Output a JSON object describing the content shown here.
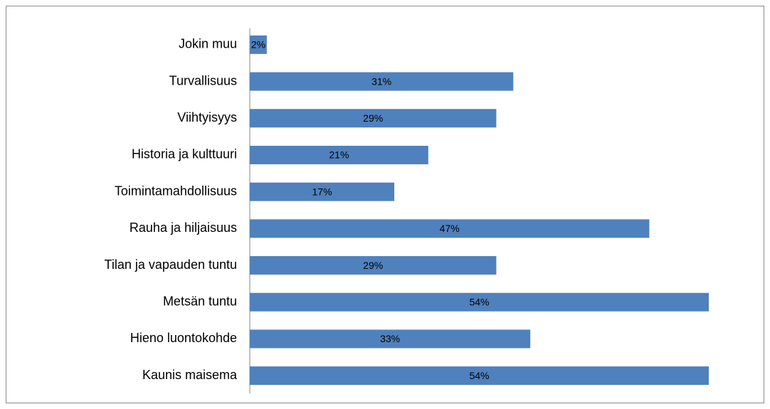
{
  "chart_data": {
    "type": "bar",
    "orientation": "horizontal",
    "categories": [
      "Jokin muu",
      "Turvallisuus",
      "Viihtyisyys",
      "Historia ja kulttuuri",
      "Toimintamahdollisuus",
      "Rauha ja hiljaisuus",
      "Tilan ja vapauden tuntu",
      "Metsän tuntu",
      "Hieno luontokohde",
      "Kaunis maisema"
    ],
    "values": [
      2,
      31,
      29,
      21,
      17,
      47,
      29,
      54,
      33,
      54
    ],
    "value_labels": [
      "2%",
      "31%",
      "29%",
      "21%",
      "17%",
      "47%",
      "29%",
      "54%",
      "33%",
      "54%"
    ],
    "color": "#4f81bd"
  }
}
